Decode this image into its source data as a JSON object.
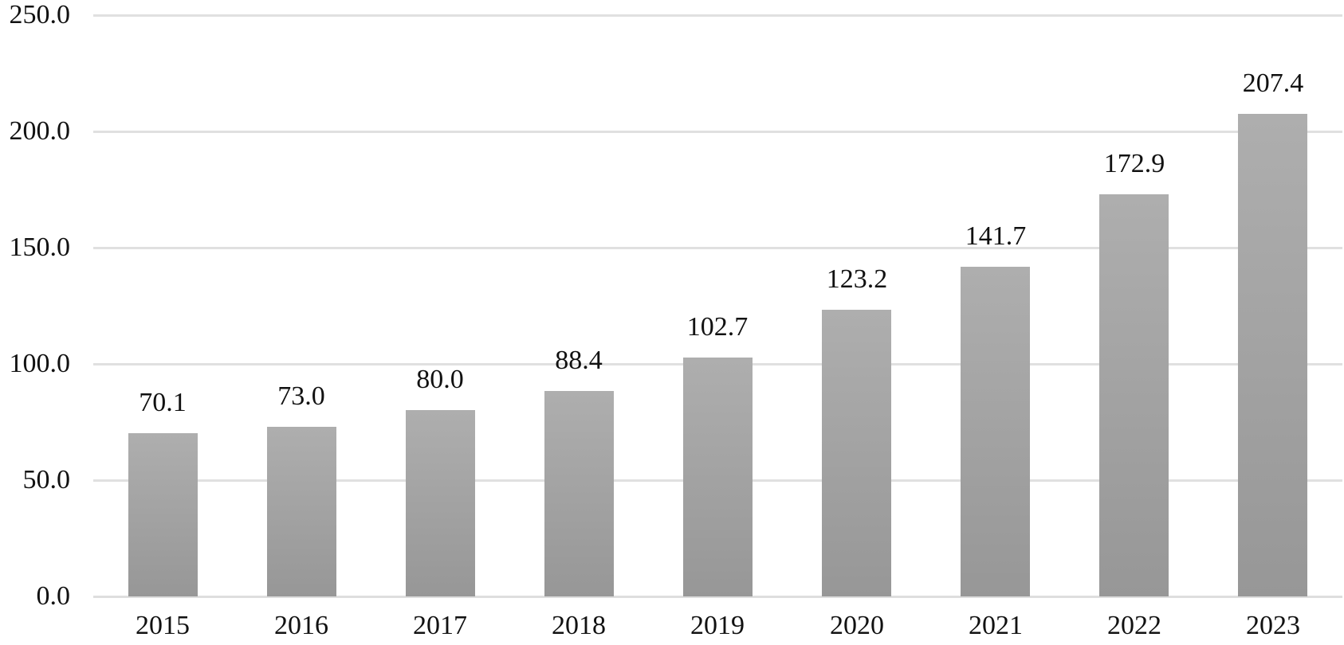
{
  "chart_data": {
    "type": "bar",
    "title": "",
    "xlabel": "",
    "ylabel": "",
    "categories": [
      "2015",
      "2016",
      "2017",
      "2018",
      "2019",
      "2020",
      "2021",
      "2022",
      "2023"
    ],
    "values": [
      70.1,
      73.0,
      80.0,
      88.4,
      102.7,
      123.2,
      141.7,
      172.9,
      207.4
    ],
    "value_labels": [
      "70.1",
      "73.0",
      "80.0",
      "88.4",
      "102.7",
      "123.2",
      "141.7",
      "172.9",
      "207.4"
    ],
    "y_ticks": [
      0,
      50,
      100,
      150,
      200,
      250
    ],
    "y_tick_labels": [
      "0.0",
      "50.0",
      "100.0",
      "150.0",
      "200.0",
      "250.0"
    ],
    "ylim": [
      0,
      250
    ],
    "grid": "horizontal gridlines on",
    "legend": "none",
    "data_labels_position": "outside end, above bars",
    "colors": {
      "bar_gradient_top": "#aeaeae",
      "bar_gradient_bottom": "#979797",
      "gridline": "#e0e0e0",
      "axis_line": "#dedede",
      "label_text": "#111111",
      "background": "#ffffff"
    }
  }
}
